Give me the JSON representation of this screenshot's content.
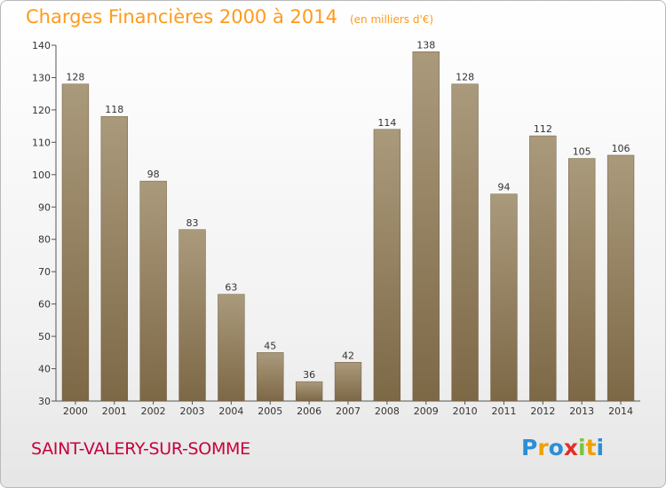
{
  "header": {
    "title": "Charges Financières 2000 à 2014",
    "subtitle": "(en milliers d'€)"
  },
  "footer": {
    "place": "SAINT-VALERY-SUR-SOMME",
    "logo_letters": [
      "P",
      "r",
      "o",
      "x",
      "i",
      "t",
      "i"
    ],
    "logo_colors": [
      "#2a8fd6",
      "#f0a000",
      "#2a8fd6",
      "#e0302a",
      "#7cc242",
      "#f0a000",
      "#2a8fd6"
    ]
  },
  "colors": {
    "bar_top": "#aa9a7c",
    "bar_bottom": "#7d6846",
    "title": "#ff9a1c",
    "place": "#c8003c"
  },
  "chart_data": {
    "type": "bar",
    "title": "Charges Financières 2000 à 2014",
    "subtitle": "(en milliers d'€)",
    "categories": [
      "2000",
      "2001",
      "2002",
      "2003",
      "2004",
      "2005",
      "2006",
      "2007",
      "2008",
      "2009",
      "2010",
      "2011",
      "2012",
      "2013",
      "2014"
    ],
    "values": [
      128,
      118,
      98,
      83,
      63,
      45,
      36,
      42,
      114,
      138,
      128,
      94,
      112,
      105,
      106
    ],
    "ylim": [
      30,
      140
    ],
    "yticks": [
      30,
      40,
      50,
      60,
      70,
      80,
      90,
      100,
      110,
      120,
      130,
      140
    ],
    "grid": false
  }
}
